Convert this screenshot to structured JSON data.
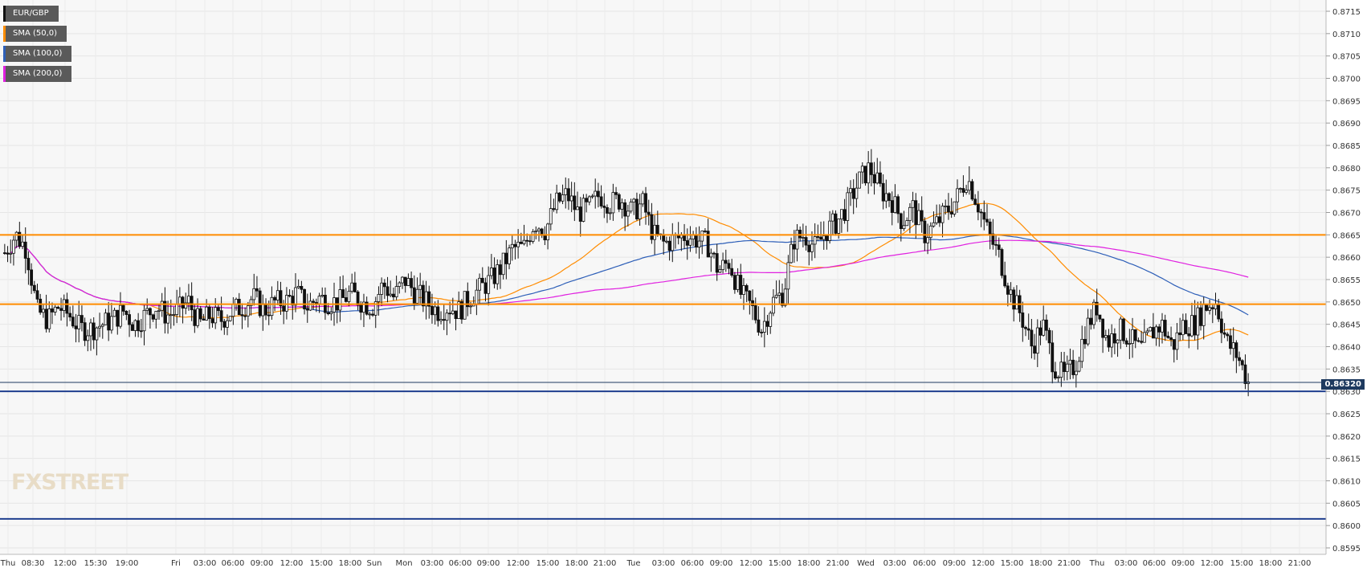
{
  "legend": [
    {
      "label": "EUR/GBP",
      "color": "#111111"
    },
    {
      "label": "SMA (50,0)",
      "color": "#ff8c00"
    },
    {
      "label": "SMA (100,0)",
      "color": "#2e5fb8"
    },
    {
      "label": "SMA (200,0)",
      "color": "#e020e0"
    }
  ],
  "watermark": "FXSTREET",
  "last_price": "0.86320",
  "chart_data": {
    "type": "candlestick",
    "symbol": "EUR/GBP",
    "ylim": [
      0.8595,
      0.8715
    ],
    "y_ticks": [
      "0.8595",
      "0.8600",
      "0.8605",
      "0.8610",
      "0.8615",
      "0.8620",
      "0.8625",
      "0.8630",
      "0.8635",
      "0.8640",
      "0.8645",
      "0.8650",
      "0.8655",
      "0.8660",
      "0.8665",
      "0.8670",
      "0.8675",
      "0.8680",
      "0.8685",
      "0.8690",
      "0.8695",
      "0.8700",
      "0.8705",
      "0.8710",
      "0.8715"
    ],
    "x_ticks": [
      "Thu",
      "08:30",
      "12:00",
      "15:30",
      "19:00",
      "Fri",
      "03:00",
      "06:00",
      "09:00",
      "12:00",
      "15:00",
      "18:00",
      "Sun",
      "Mon",
      "03:00",
      "06:00",
      "09:00",
      "12:00",
      "15:00",
      "18:00",
      "21:00",
      "Tue",
      "03:00",
      "06:00",
      "09:00",
      "12:00",
      "15:00",
      "18:00",
      "21:00",
      "Wed",
      "03:00",
      "06:00",
      "09:00",
      "12:00",
      "15:00",
      "18:00",
      "21:00",
      "Thu",
      "03:00",
      "06:00",
      "09:00",
      "12:00",
      "15:00",
      "18:00",
      "21:00"
    ],
    "horizontal_levels": [
      {
        "value": 0.8665,
        "color": "#ff8c00"
      },
      {
        "value": 0.86495,
        "color": "#ff8c00"
      },
      {
        "value": 0.863,
        "color": "#1f3f8f"
      },
      {
        "value": 0.86015,
        "color": "#1f3f8f"
      },
      {
        "value": 0.8632,
        "color": "#1e3a5f"
      }
    ],
    "close_path": [
      0.8661,
      0.8665,
      0.8662,
      0.8648,
      0.8646,
      0.8649,
      0.8647,
      0.8644,
      0.8644,
      0.8645,
      0.8646,
      0.8648,
      0.8645,
      0.8647,
      0.8649,
      0.8647,
      0.8648,
      0.865,
      0.8645,
      0.8647,
      0.8646,
      0.8648,
      0.8649,
      0.8651,
      0.8648,
      0.865,
      0.865,
      0.8652,
      0.8649,
      0.8651,
      0.865,
      0.865,
      0.8652,
      0.865,
      0.8649,
      0.8654,
      0.8651,
      0.8655,
      0.8652,
      0.865,
      0.8648,
      0.8649,
      0.8648,
      0.8651,
      0.8653,
      0.8655,
      0.8658,
      0.8662,
      0.8662,
      0.8668,
      0.8666,
      0.8672,
      0.8674,
      0.867,
      0.8671,
      0.8674,
      0.8672,
      0.8673,
      0.867,
      0.8672,
      0.8665,
      0.8663,
      0.8664,
      0.8665,
      0.8664,
      0.8663,
      0.8657,
      0.8659,
      0.8652,
      0.8649,
      0.8644,
      0.865,
      0.8652,
      0.8664,
      0.8665,
      0.8662,
      0.8666,
      0.8668,
      0.8672,
      0.8677,
      0.868,
      0.8675,
      0.8673,
      0.8668,
      0.8671,
      0.8665,
      0.8667,
      0.867,
      0.8673,
      0.8678,
      0.8672,
      0.8665,
      0.866,
      0.8652,
      0.8647,
      0.864,
      0.8645,
      0.8636,
      0.8633,
      0.8636,
      0.8644,
      0.8649,
      0.8641,
      0.8644,
      0.8642,
      0.8639,
      0.8643,
      0.8645,
      0.864,
      0.8645,
      0.8645,
      0.8649,
      0.865,
      0.8641,
      0.8638,
      0.8632
    ]
  }
}
